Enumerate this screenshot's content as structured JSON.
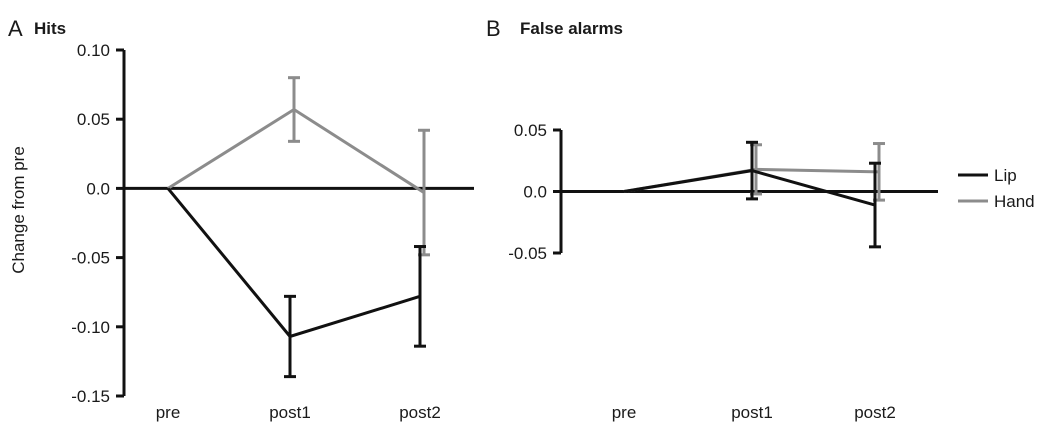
{
  "chart_data": [
    {
      "type": "line",
      "panel": "A",
      "title": "Hits",
      "xlabel": "",
      "ylabel": "Change from pre",
      "categories": [
        "pre",
        "post1",
        "post2"
      ],
      "ylim": [
        -0.15,
        0.1
      ],
      "yticks": [
        "0.10",
        "0.05",
        "0.0",
        "-0.05",
        "-0.10",
        "-0.15"
      ],
      "ytick_values": [
        0.1,
        0.05,
        0.0,
        -0.05,
        -0.1,
        -0.15
      ],
      "series": [
        {
          "name": "Lip",
          "color": "#111111",
          "values": [
            0.0,
            -0.107,
            -0.078
          ],
          "errors": [
            null,
            0.029,
            0.036
          ]
        },
        {
          "name": "Hand",
          "color": "#8c8c8c",
          "values": [
            0.0,
            0.057,
            -0.003
          ],
          "errors": [
            null,
            0.023,
            0.045
          ]
        }
      ]
    },
    {
      "type": "line",
      "panel": "B",
      "title": "False alarms",
      "xlabel": "",
      "ylabel": "",
      "categories": [
        "pre",
        "post1",
        "post2"
      ],
      "ylim": [
        -0.05,
        0.05
      ],
      "yticks": [
        "0.05",
        "0.0",
        "-0.05"
      ],
      "ytick_values": [
        0.05,
        0.0,
        -0.05
      ],
      "series": [
        {
          "name": "Lip",
          "color": "#111111",
          "values": [
            0.0,
            0.017,
            -0.011
          ],
          "errors": [
            null,
            0.023,
            0.034
          ]
        },
        {
          "name": "Hand",
          "color": "#8c8c8c",
          "values": [
            0.0,
            0.018,
            0.016
          ],
          "errors": [
            null,
            0.02,
            0.023
          ]
        }
      ]
    }
  ],
  "legend": {
    "items": [
      {
        "label": "Lip",
        "color": "#111111"
      },
      {
        "label": "Hand",
        "color": "#8c8c8c"
      }
    ]
  }
}
